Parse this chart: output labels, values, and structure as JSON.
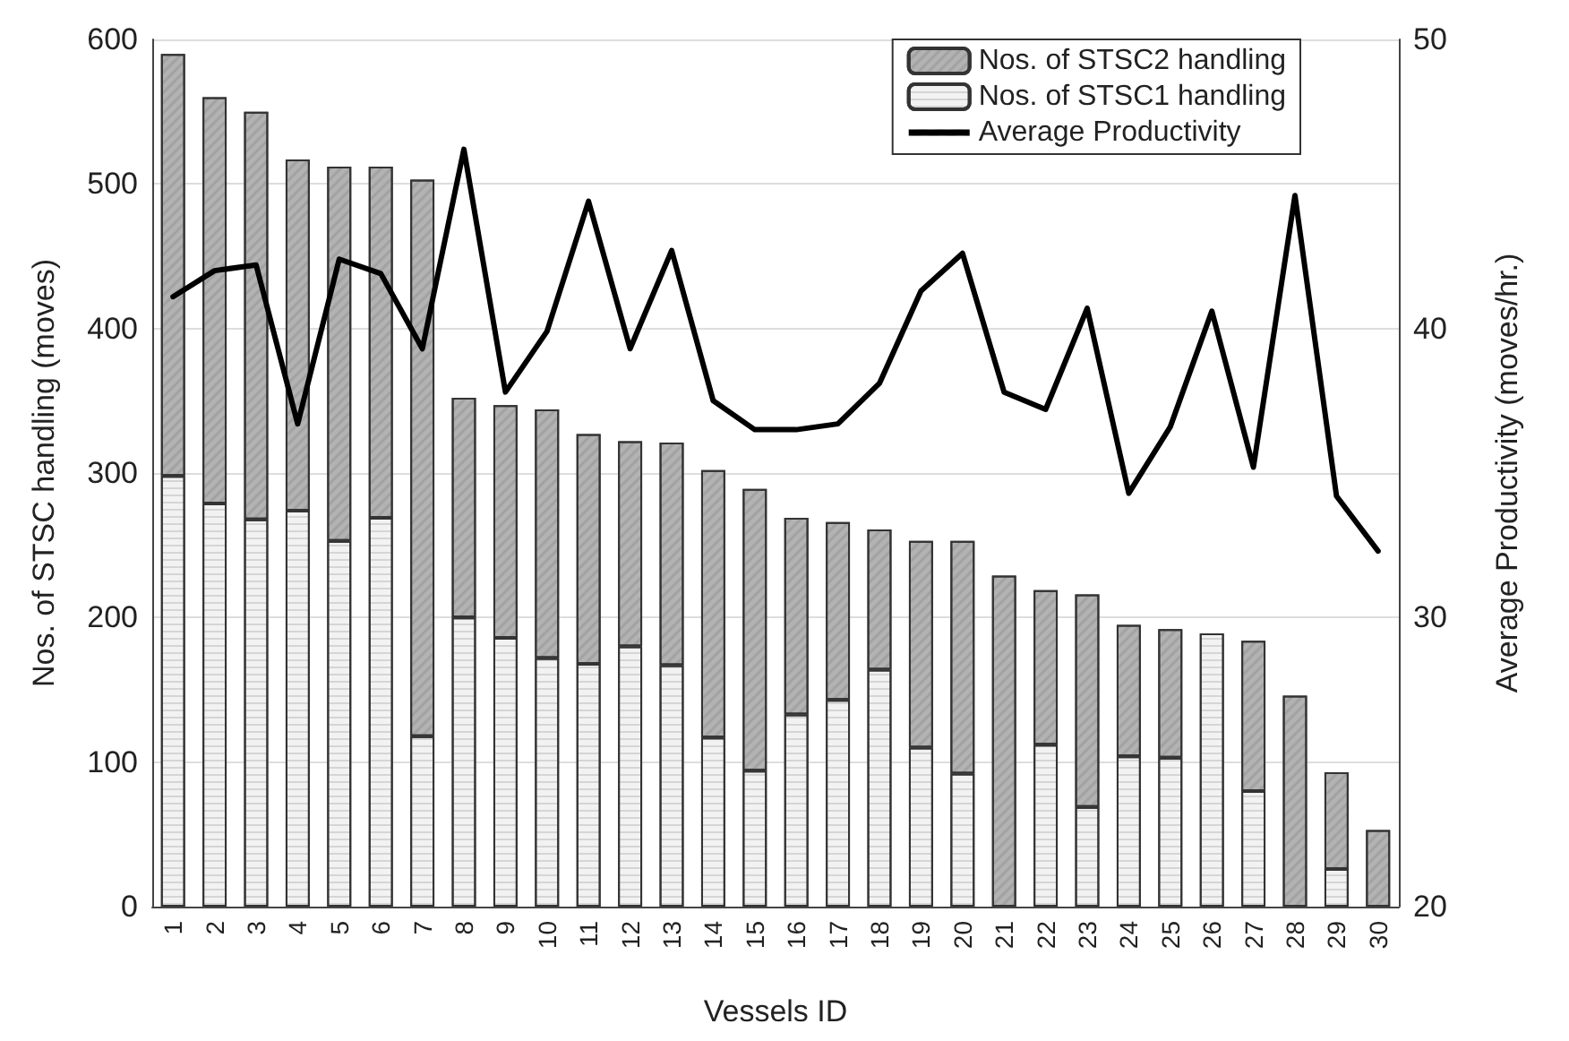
{
  "chart_data": {
    "type": "bar",
    "stacked": true,
    "xlabel": "Vessels ID",
    "ylabel": "Nos. of STSC handling (moves)",
    "y2label": "Average Productivity (moves/hr.)",
    "categories": [
      "1",
      "2",
      "3",
      "4",
      "5",
      "6",
      "7",
      "8",
      "9",
      "10",
      "11",
      "12",
      "13",
      "14",
      "15",
      "16",
      "17",
      "18",
      "19",
      "20",
      "21",
      "22",
      "23",
      "24",
      "25",
      "26",
      "27",
      "28",
      "29",
      "30"
    ],
    "series": [
      {
        "name": "Nos. of STSC1 handling",
        "color": "#f2f2f2",
        "values": [
          298,
          279,
          268,
          274,
          253,
          269,
          118,
          200,
          186,
          172,
          168,
          180,
          167,
          117,
          94,
          133,
          143,
          164,
          110,
          92,
          0,
          112,
          69,
          104,
          103,
          189,
          80,
          0,
          26,
          0
        ]
      },
      {
        "name": "Nos. of STSC2 handling",
        "color": "#b3b3b3",
        "values": [
          292,
          281,
          282,
          243,
          259,
          243,
          385,
          152,
          161,
          172,
          159,
          142,
          154,
          185,
          195,
          136,
          123,
          97,
          143,
          161,
          229,
          107,
          147,
          91,
          89,
          0,
          104,
          146,
          67,
          53
        ]
      },
      {
        "name": "Average Productivity",
        "type": "line",
        "axis": "y2",
        "color": "#000000",
        "values": [
          41.1,
          42.0,
          42.2,
          36.7,
          42.4,
          41.9,
          39.3,
          46.2,
          37.8,
          39.9,
          44.4,
          39.3,
          42.7,
          37.5,
          36.5,
          36.5,
          36.7,
          38.1,
          41.3,
          42.6,
          37.8,
          37.2,
          40.7,
          34.3,
          36.6,
          40.6,
          35.2,
          44.6,
          34.2,
          32.3
        ]
      }
    ],
    "ylim": [
      0,
      600
    ],
    "yticks": [
      0,
      100,
      200,
      300,
      400,
      500,
      600
    ],
    "y2lim": [
      20,
      50
    ],
    "y2ticks": [
      20,
      30,
      40,
      50
    ],
    "grid": "y",
    "legend": "top right",
    "marker": "none",
    "line_style": "solid"
  }
}
